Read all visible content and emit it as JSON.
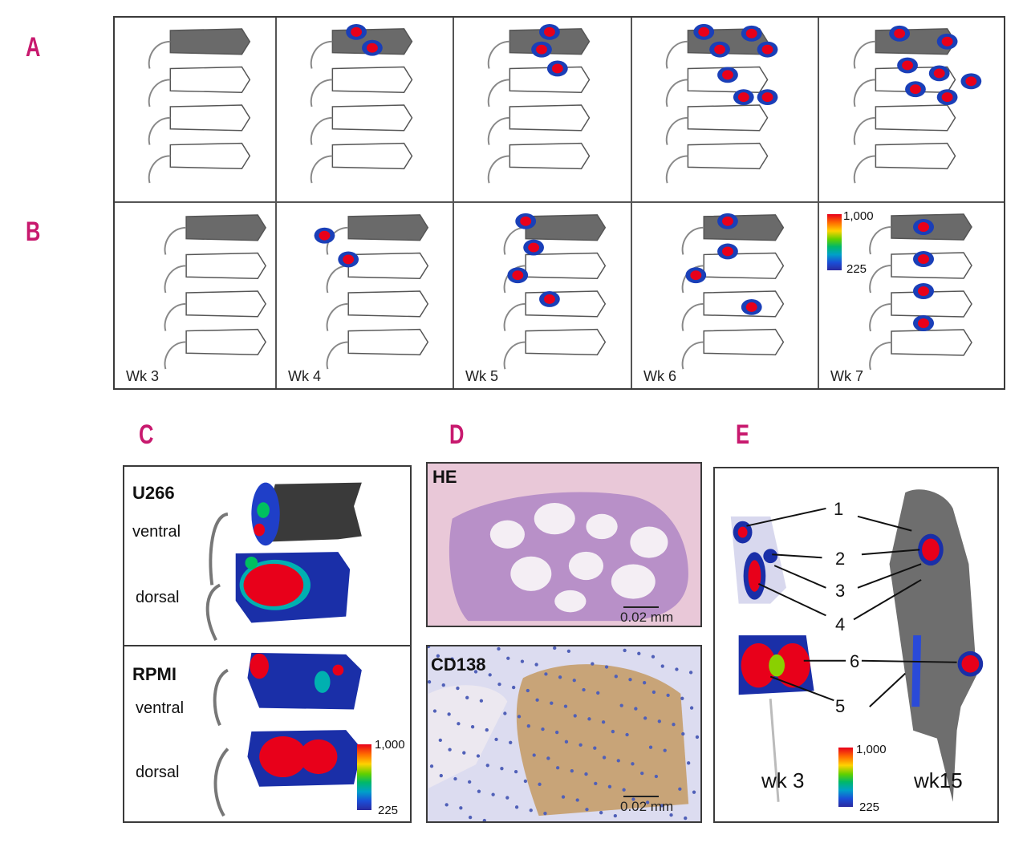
{
  "panels": {
    "A": "A",
    "B": "B",
    "C": "C",
    "D": "D",
    "E": "E"
  },
  "weeks": [
    "Wk 3",
    "Wk 4",
    "Wk 5",
    "Wk 6",
    "Wk 7"
  ],
  "colorbar": {
    "max": "1,000",
    "min": "225"
  },
  "panel_c": {
    "top_title": "U266",
    "top_ventral": "ventral",
    "top_dorsal": "dorsal",
    "bottom_title": "RPMI",
    "bottom_ventral": "ventral",
    "bottom_dorsal": "dorsal"
  },
  "panel_d": {
    "top_title": "HE",
    "top_scale": "0.02 mm",
    "bottom_title": "CD138",
    "bottom_scale": "0.02 mm"
  },
  "panel_e": {
    "numbers": [
      "1",
      "2",
      "3",
      "4",
      "6",
      "5"
    ],
    "label_left": "wk 3",
    "label_right": "wk15"
  },
  "colors": {
    "letter": "#c8196e",
    "hot": "#e8001a",
    "cold": "#1a3fb8"
  }
}
